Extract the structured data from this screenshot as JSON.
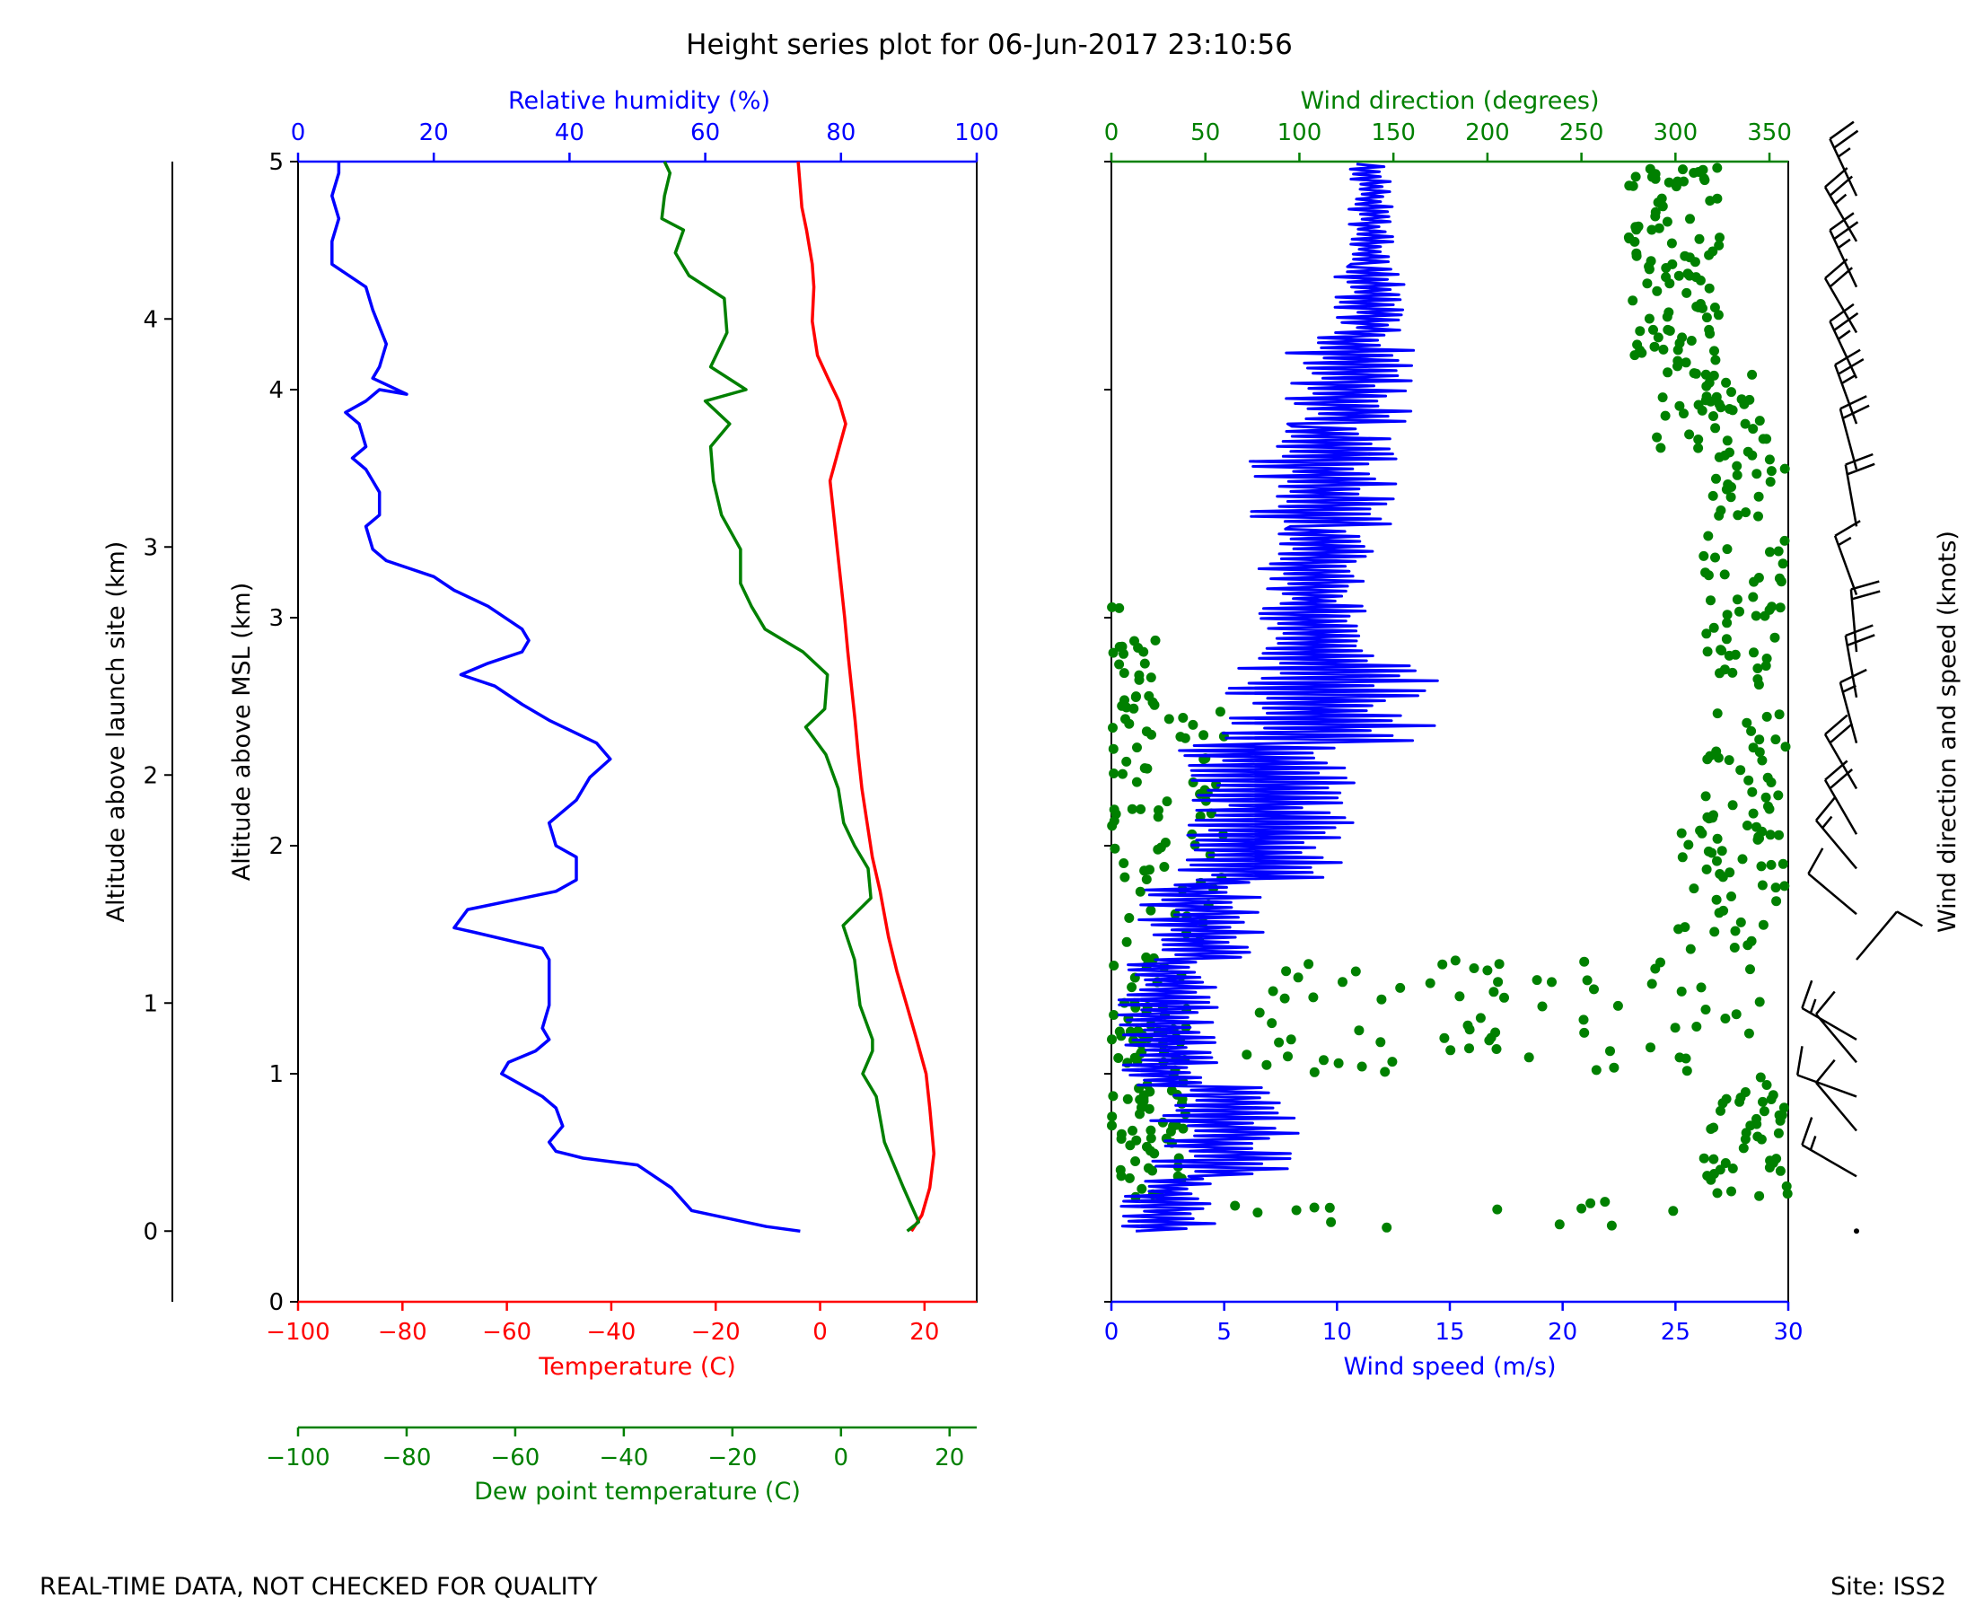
{
  "title": "Height series plot for 06-Jun-2017 23:10:56",
  "footer": {
    "left": "REAL-TIME DATA, NOT CHECKED FOR QUALITY",
    "right": "Site: ISS2"
  },
  "colors": {
    "temperature": "#ff0000",
    "dewpoint": "#008000",
    "humidity": "#0000ff",
    "wind_speed": "#0000ff",
    "wind_direction": "#008000",
    "text": "#000000"
  },
  "chart_data": [
    {
      "type": "line",
      "name": "thermo-panel",
      "ylabel": "Altitude above MSL (km)",
      "ylabel_launch": "Altitude above launch site (km)",
      "ylim_msl": [
        0,
        5
      ],
      "ylim_launch": [
        -0.31,
        4.69
      ],
      "y_ticks": [
        "0",
        "1",
        "2",
        "3",
        "4",
        "5"
      ],
      "y_ticks_launch": [
        "0",
        "1",
        "2",
        "3",
        "4"
      ],
      "temperature_axis": {
        "label": "Temperature (C)",
        "range": [
          -100,
          30
        ],
        "ticks": [
          "−100",
          "−80",
          "−60",
          "−40",
          "−20",
          "0",
          "20"
        ]
      },
      "dewpoint_axis": {
        "label": "Dew point temperature (C)",
        "range": [
          -100,
          25
        ],
        "ticks": [
          "−100",
          "−80",
          "−60",
          "−40",
          "−20",
          "0",
          "20"
        ]
      },
      "humidity_axis": {
        "label": "Relative humidity (%)",
        "range": [
          0,
          100
        ],
        "ticks": [
          "0",
          "20",
          "40",
          "60",
          "80",
          "100"
        ]
      },
      "series": [
        {
          "name": "Temperature",
          "points": [
            [
              17.5,
              0.31
            ],
            [
              19.5,
              0.38
            ],
            [
              21.0,
              0.5
            ],
            [
              21.8,
              0.65
            ],
            [
              21.0,
              0.85
            ],
            [
              20.3,
              1.0
            ],
            [
              18.5,
              1.15
            ],
            [
              16.6,
              1.3
            ],
            [
              14.7,
              1.45
            ],
            [
              13.1,
              1.6
            ],
            [
              11.5,
              1.8
            ],
            [
              10.0,
              1.95
            ],
            [
              9.0,
              2.1
            ],
            [
              8.0,
              2.25
            ],
            [
              7.3,
              2.4
            ],
            [
              6.7,
              2.55
            ],
            [
              6.0,
              2.7
            ],
            [
              5.3,
              2.85
            ],
            [
              4.7,
              3.0
            ],
            [
              4.0,
              3.15
            ],
            [
              3.3,
              3.3
            ],
            [
              2.6,
              3.45
            ],
            [
              1.9,
              3.6
            ],
            [
              4.9,
              3.85
            ],
            [
              3.6,
              3.95
            ],
            [
              1.5,
              4.05
            ],
            [
              -0.5,
              4.15
            ],
            [
              -1.5,
              4.3
            ],
            [
              -1.2,
              4.45
            ],
            [
              -1.5,
              4.55
            ],
            [
              -2.6,
              4.7
            ],
            [
              -3.5,
              4.8
            ],
            [
              -4.2,
              5.0
            ]
          ]
        },
        {
          "name": "Dew point",
          "points": [
            [
              12.2,
              0.31
            ],
            [
              14.3,
              0.35
            ],
            [
              11.5,
              0.5
            ],
            [
              8.0,
              0.7
            ],
            [
              6.5,
              0.9
            ],
            [
              4.0,
              1.0
            ],
            [
              5.8,
              1.1
            ],
            [
              5.8,
              1.15
            ],
            [
              3.5,
              1.3
            ],
            [
              2.5,
              1.5
            ],
            [
              0.4,
              1.65
            ],
            [
              5.5,
              1.77
            ],
            [
              5.0,
              1.9
            ],
            [
              2.5,
              2.0
            ],
            [
              0.5,
              2.1
            ],
            [
              -0.5,
              2.25
            ],
            [
              -2.8,
              2.4
            ],
            [
              -6.5,
              2.52
            ],
            [
              -3.0,
              2.6
            ],
            [
              -2.5,
              2.75
            ],
            [
              -7.0,
              2.85
            ],
            [
              -14.0,
              2.95
            ],
            [
              -16.5,
              3.05
            ],
            [
              -18.5,
              3.15
            ],
            [
              -18.5,
              3.3
            ],
            [
              -22.0,
              3.45
            ],
            [
              -23.5,
              3.6
            ],
            [
              -24.0,
              3.75
            ],
            [
              -20.5,
              3.85
            ],
            [
              -25.0,
              3.95
            ],
            [
              -17.5,
              4.0
            ],
            [
              -24.0,
              4.1
            ],
            [
              -21.0,
              4.25
            ],
            [
              -21.5,
              4.4
            ],
            [
              -28.0,
              4.5
            ],
            [
              -30.5,
              4.6
            ],
            [
              -29.0,
              4.7
            ],
            [
              -33.0,
              4.75
            ],
            [
              -32.5,
              4.85
            ],
            [
              -31.5,
              4.95
            ],
            [
              -32.5,
              5.0
            ]
          ]
        },
        {
          "name": "Relative humidity",
          "points": [
            [
              74,
              0.31
            ],
            [
              69,
              0.33
            ],
            [
              58,
              0.4
            ],
            [
              55,
              0.5
            ],
            [
              50,
              0.6
            ],
            [
              42,
              0.63
            ],
            [
              38,
              0.66
            ],
            [
              37,
              0.7
            ],
            [
              39,
              0.77
            ],
            [
              38,
              0.85
            ],
            [
              36,
              0.9
            ],
            [
              33,
              0.95
            ],
            [
              30,
              1.0
            ],
            [
              31,
              1.05
            ],
            [
              35,
              1.1
            ],
            [
              37,
              1.15
            ],
            [
              36,
              1.2
            ],
            [
              37,
              1.3
            ],
            [
              37,
              1.4
            ],
            [
              37,
              1.5
            ],
            [
              36,
              1.55
            ],
            [
              26,
              1.62
            ],
            [
              23,
              1.64
            ],
            [
              24,
              1.68
            ],
            [
              25,
              1.72
            ],
            [
              38,
              1.8
            ],
            [
              41,
              1.85
            ],
            [
              41,
              1.95
            ],
            [
              38,
              2.0
            ],
            [
              37,
              2.1
            ],
            [
              41,
              2.2
            ],
            [
              43,
              2.3
            ],
            [
              46,
              2.38
            ],
            [
              44,
              2.45
            ],
            [
              37,
              2.55
            ],
            [
              33,
              2.62
            ],
            [
              29,
              2.7
            ],
            [
              24,
              2.75
            ],
            [
              28,
              2.8
            ],
            [
              33,
              2.85
            ],
            [
              34,
              2.9
            ],
            [
              33,
              2.95
            ],
            [
              28,
              3.05
            ],
            [
              23,
              3.12
            ],
            [
              20,
              3.18
            ],
            [
              13,
              3.25
            ],
            [
              11,
              3.3
            ],
            [
              10,
              3.4
            ],
            [
              12,
              3.45
            ],
            [
              12,
              3.55
            ],
            [
              11,
              3.6
            ],
            [
              10,
              3.65
            ],
            [
              8,
              3.7
            ],
            [
              10,
              3.75
            ],
            [
              9,
              3.85
            ],
            [
              7,
              3.9
            ],
            [
              10,
              3.95
            ],
            [
              12,
              4.0
            ],
            [
              16,
              3.98
            ],
            [
              11,
              4.05
            ],
            [
              12,
              4.1
            ],
            [
              13,
              4.2
            ],
            [
              11,
              4.35
            ],
            [
              10,
              4.45
            ],
            [
              5,
              4.55
            ],
            [
              5,
              4.65
            ],
            [
              6,
              4.75
            ],
            [
              5,
              4.85
            ],
            [
              6,
              4.95
            ],
            [
              6,
              5.0
            ]
          ]
        }
      ]
    },
    {
      "type": "scatter",
      "name": "wind-panel",
      "wind_speed_axis": {
        "label": "Wind speed (m/s)",
        "range": [
          0,
          30
        ],
        "ticks": [
          "0",
          "5",
          "10",
          "15",
          "20",
          "25",
          "30"
        ]
      },
      "wind_direction_axis": {
        "label": "Wind direction (degrees)",
        "range": [
          0,
          360
        ],
        "ticks": [
          "0",
          "50",
          "100",
          "150",
          "200",
          "250",
          "300",
          "350"
        ]
      },
      "barb_label": "Wind direction and speed (knots)",
      "ylim": [
        0,
        5
      ],
      "series": [
        {
          "name": "Wind speed",
          "kind": "line",
          "segments": [
            {
              "y0": 0.31,
              "y1": 0.55,
              "base": 2.5,
              "amp": 2.2
            },
            {
              "y0": 0.55,
              "y1": 0.95,
              "base": 5.0,
              "amp": 3.4
            },
            {
              "y0": 0.95,
              "y1": 1.5,
              "base": 2.5,
              "amp": 2.2
            },
            {
              "y0": 1.5,
              "y1": 1.85,
              "base": 4.0,
              "amp": 2.8
            },
            {
              "y0": 1.85,
              "y1": 2.45,
              "base": 7.0,
              "amp": 4.0
            },
            {
              "y0": 2.45,
              "y1": 2.8,
              "base": 9.5,
              "amp": 5.0
            },
            {
              "y0": 2.8,
              "y1": 3.4,
              "base": 9.0,
              "amp": 2.6
            },
            {
              "y0": 3.4,
              "y1": 3.85,
              "base": 9.5,
              "amp": 3.4
            },
            {
              "y0": 3.85,
              "y1": 4.25,
              "base": 10.5,
              "amp": 3.0
            },
            {
              "y0": 4.25,
              "y1": 4.55,
              "base": 11.5,
              "amp": 1.6
            },
            {
              "y0": 4.55,
              "y1": 5.0,
              "base": 11.5,
              "amp": 1.0
            }
          ]
        },
        {
          "name": "Wind direction",
          "kind": "scatter",
          "clusters": [
            {
              "y0": 0.31,
              "y1": 0.45,
              "dmin": 10,
              "dmax": 300,
              "n": 14
            },
            {
              "y0": 0.45,
              "y1": 1.5,
              "dmin": 0,
              "dmax": 40,
              "n": 100
            },
            {
              "y0": 0.45,
              "y1": 1.0,
              "dmin": 315,
              "dmax": 360,
              "n": 45
            },
            {
              "y0": 1.0,
              "y1": 1.5,
              "dmin": 70,
              "dmax": 350,
              "n": 75
            },
            {
              "y0": 1.5,
              "y1": 2.6,
              "dmin": 0,
              "dmax": 60,
              "n": 70
            },
            {
              "y0": 1.5,
              "y1": 2.1,
              "dmin": 300,
              "dmax": 360,
              "n": 45
            },
            {
              "y0": 2.6,
              "y1": 3.1,
              "dmin": 0,
              "dmax": 25,
              "n": 25
            },
            {
              "y0": 2.1,
              "y1": 3.7,
              "dmin": 315,
              "dmax": 360,
              "n": 95
            },
            {
              "y0": 3.7,
              "y1": 4.1,
              "dmin": 290,
              "dmax": 350,
              "n": 45
            },
            {
              "y0": 4.1,
              "y1": 5.0,
              "dmin": 275,
              "dmax": 325,
              "n": 95
            }
          ]
        },
        {
          "name": "Wind barbs",
          "kind": "barbs",
          "knots": [
            {
              "y": 0.31,
              "dir": 0,
              "spd": 0
            },
            {
              "y": 0.55,
              "dir": 300,
              "spd": 15
            },
            {
              "y": 0.75,
              "dir": 320,
              "spd": 10
            },
            {
              "y": 0.9,
              "dir": 290,
              "spd": 12
            },
            {
              "y": 1.05,
              "dir": 320,
              "spd": 10
            },
            {
              "y": 1.15,
              "dir": 300,
              "spd": 15
            },
            {
              "y": 1.5,
              "dir": 40,
              "spd": 10
            },
            {
              "y": 1.7,
              "dir": 310,
              "spd": 10
            },
            {
              "y": 1.9,
              "dir": 320,
              "spd": 15
            },
            {
              "y": 2.05,
              "dir": 330,
              "spd": 20
            },
            {
              "y": 2.25,
              "dir": 330,
              "spd": 20
            },
            {
              "y": 2.45,
              "dir": 345,
              "spd": 15
            },
            {
              "y": 2.65,
              "dir": 350,
              "spd": 20
            },
            {
              "y": 2.85,
              "dir": 355,
              "spd": 20
            },
            {
              "y": 3.1,
              "dir": 340,
              "spd": 15
            },
            {
              "y": 3.4,
              "dir": 350,
              "spd": 20
            },
            {
              "y": 3.65,
              "dir": 345,
              "spd": 20
            },
            {
              "y": 3.85,
              "dir": 340,
              "spd": 25
            },
            {
              "y": 4.05,
              "dir": 335,
              "spd": 25
            },
            {
              "y": 4.25,
              "dir": 330,
              "spd": 20
            },
            {
              "y": 4.45,
              "dir": 335,
              "spd": 25
            },
            {
              "y": 4.65,
              "dir": 330,
              "spd": 25
            },
            {
              "y": 4.85,
              "dir": 335,
              "spd": 25
            }
          ]
        }
      ]
    }
  ]
}
